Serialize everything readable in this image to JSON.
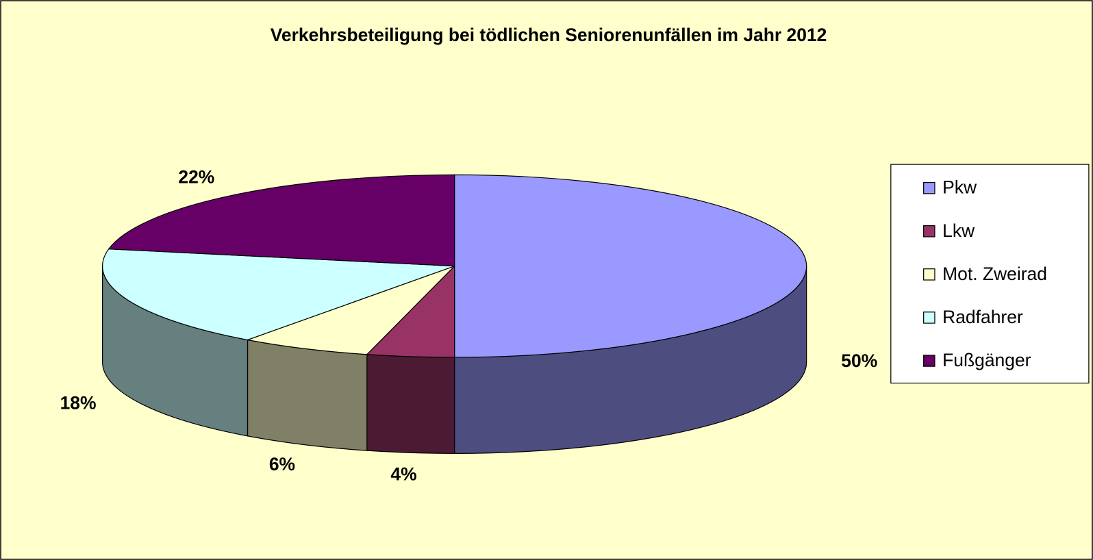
{
  "chart_data": {
    "type": "pie3d",
    "title": "Verkehrsbeteiligung bei tödlichen Seniorenunfällen im Jahr 2012",
    "categories": [
      "Pkw",
      "Lkw",
      "Mot. Zweirad",
      "Radfahrer",
      "Fußgänger"
    ],
    "values": [
      50,
      4,
      6,
      18,
      22
    ],
    "value_labels": [
      "50%",
      "4%",
      "6%",
      "18%",
      "22%"
    ],
    "colors": [
      "#9999ff",
      "#993366",
      "#ffffcc",
      "#ccffff",
      "#660066"
    ],
    "legend": "right"
  }
}
